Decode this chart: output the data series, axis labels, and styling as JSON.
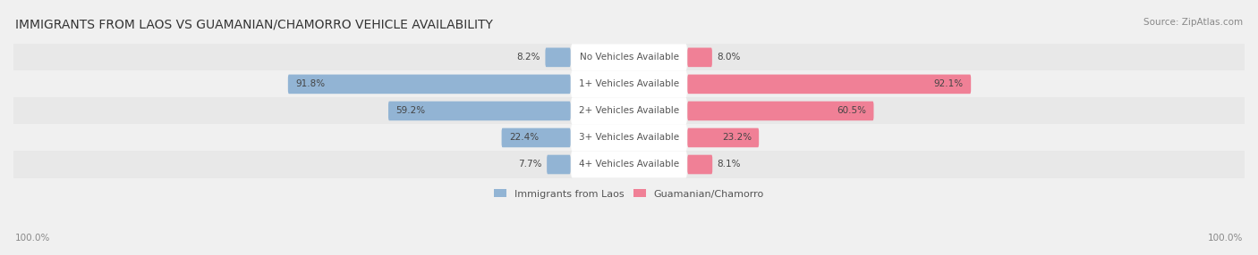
{
  "title": "IMMIGRANTS FROM LAOS VS GUAMANIAN/CHAMORRO VEHICLE AVAILABILITY",
  "source": "Source: ZipAtlas.com",
  "categories": [
    "No Vehicles Available",
    "1+ Vehicles Available",
    "2+ Vehicles Available",
    "3+ Vehicles Available",
    "4+ Vehicles Available"
  ],
  "laos_values": [
    8.2,
    91.8,
    59.2,
    22.4,
    7.7
  ],
  "guam_values": [
    8.0,
    92.1,
    60.5,
    23.2,
    8.1
  ],
  "laos_color": "#92b4d4",
  "guam_color": "#f08096",
  "bg_color": "#f0f0f0",
  "row_bg_odd": "#ececec",
  "row_bg_even": "#f8f8f8",
  "center_label_bg": "#ffffff",
  "max_val": 100.0,
  "axis_label_left": "100.0%",
  "axis_label_right": "100.0%",
  "legend_laos": "Immigrants from Laos",
  "legend_guam": "Guamanian/Chamorro"
}
